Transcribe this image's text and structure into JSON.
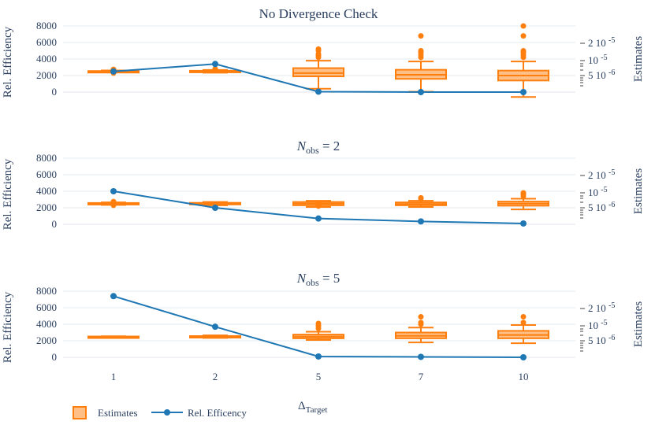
{
  "chart_data": {
    "type": "box",
    "x_title_base": "Δ",
    "x_title_sub": "Target",
    "categories": [
      "1",
      "2",
      "5",
      "7",
      "10"
    ],
    "legend": [
      {
        "name": "Estimates",
        "color": "#ff7f0e"
      },
      {
        "name": "Rel. Efficency",
        "color": "#1f77b4"
      }
    ],
    "panels": [
      {
        "title": "No Divergence Check",
        "title_math": false,
        "ylabel": "Rel. Efficiency",
        "ylabel_right": "Estimates",
        "ylim": [
          0,
          8000
        ],
        "yticks": [
          "0",
          "2000",
          "4000",
          "6000",
          "8000"
        ],
        "y_right_ticks": [
          "2 10 -5",
          "10 -5",
          "5 10 -6"
        ],
        "efficiency": [
          2500,
          3400,
          50,
          0,
          0
        ],
        "boxes": [
          {
            "min": 2400,
            "q1": 2450,
            "median": 2500,
            "q3": 2550,
            "max": 2620,
            "outliers": [
              2700,
              2300,
              2750
            ]
          },
          {
            "min": 2350,
            "q1": 2420,
            "median": 2500,
            "q3": 2580,
            "max": 2680,
            "outliers": [
              2800,
              2750
            ]
          },
          {
            "min": 400,
            "q1": 1900,
            "median": 2300,
            "q3": 2900,
            "max": 3800,
            "outliers": [
              4200,
              4600,
              5000,
              5200,
              4400
            ]
          },
          {
            "min": 50,
            "q1": 1600,
            "median": 2100,
            "q3": 2700,
            "max": 3700,
            "outliers": [
              4200,
              4500,
              4800,
              5000,
              6800
            ]
          },
          {
            "min": -600,
            "q1": 1400,
            "median": 2000,
            "q3": 2600,
            "max": 3700,
            "outliers": [
              4200,
              4500,
              4800,
              5000,
              6800,
              8000
            ]
          }
        ]
      },
      {
        "title_base": "N",
        "title_sub": "obs",
        "title_rest": " = 2",
        "title_math": true,
        "ylabel": "Rel. Efficiency",
        "ylabel_right": "Estimates",
        "ylim": [
          0,
          8000
        ],
        "yticks": [
          "0",
          "2000",
          "4000",
          "6000",
          "8000"
        ],
        "y_right_ticks": [
          "2 10 -5",
          "10 -5",
          "5 10 -6"
        ],
        "efficiency": [
          4000,
          2000,
          700,
          350,
          100
        ],
        "boxes": [
          {
            "min": 2350,
            "q1": 2420,
            "median": 2500,
            "q3": 2580,
            "max": 2650,
            "outliers": [
              2700,
              2300,
              2750
            ]
          },
          {
            "min": 2300,
            "q1": 2400,
            "median": 2500,
            "q3": 2600,
            "max": 2700,
            "outliers": []
          },
          {
            "min": 2100,
            "q1": 2300,
            "median": 2500,
            "q3": 2700,
            "max": 2850,
            "outliers": [
              2200,
              2400,
              2600
            ]
          },
          {
            "min": 2100,
            "q1": 2300,
            "median": 2450,
            "q3": 2650,
            "max": 2850,
            "outliers": [
              3100,
              3200
            ]
          },
          {
            "min": 1800,
            "q1": 2250,
            "median": 2500,
            "q3": 2750,
            "max": 3100,
            "outliers": [
              3400,
              3600,
              3800
            ]
          }
        ]
      },
      {
        "title_base": "N",
        "title_sub": "obs",
        "title_rest": " = 5",
        "title_math": true,
        "ylabel": "Rel. Efficiency",
        "ylabel_right": "Estimates",
        "ylim": [
          0,
          8000
        ],
        "yticks": [
          "0",
          "2000",
          "4000",
          "6000",
          "8000"
        ],
        "y_right_ticks": [
          "2 10 -5",
          "10 -5",
          "5 10 -6"
        ],
        "efficiency": [
          7400,
          3700,
          100,
          50,
          0
        ],
        "boxes": [
          {
            "min": 2450,
            "q1": 2480,
            "median": 2500,
            "q3": 2520,
            "max": 2550,
            "outliers": []
          },
          {
            "min": 2350,
            "q1": 2430,
            "median": 2500,
            "q3": 2570,
            "max": 2650,
            "outliers": []
          },
          {
            "min": 2100,
            "q1": 2300,
            "median": 2500,
            "q3": 2750,
            "max": 3100,
            "outliers": [
              3500,
              3800,
              4100
            ]
          },
          {
            "min": 1800,
            "q1": 2300,
            "median": 2600,
            "q3": 3000,
            "max": 3600,
            "outliers": [
              4000,
              4200,
              4900
            ]
          },
          {
            "min": 1700,
            "q1": 2300,
            "median": 2700,
            "q3": 3200,
            "max": 3900,
            "outliers": [
              4200,
              4900
            ]
          }
        ]
      }
    ]
  }
}
